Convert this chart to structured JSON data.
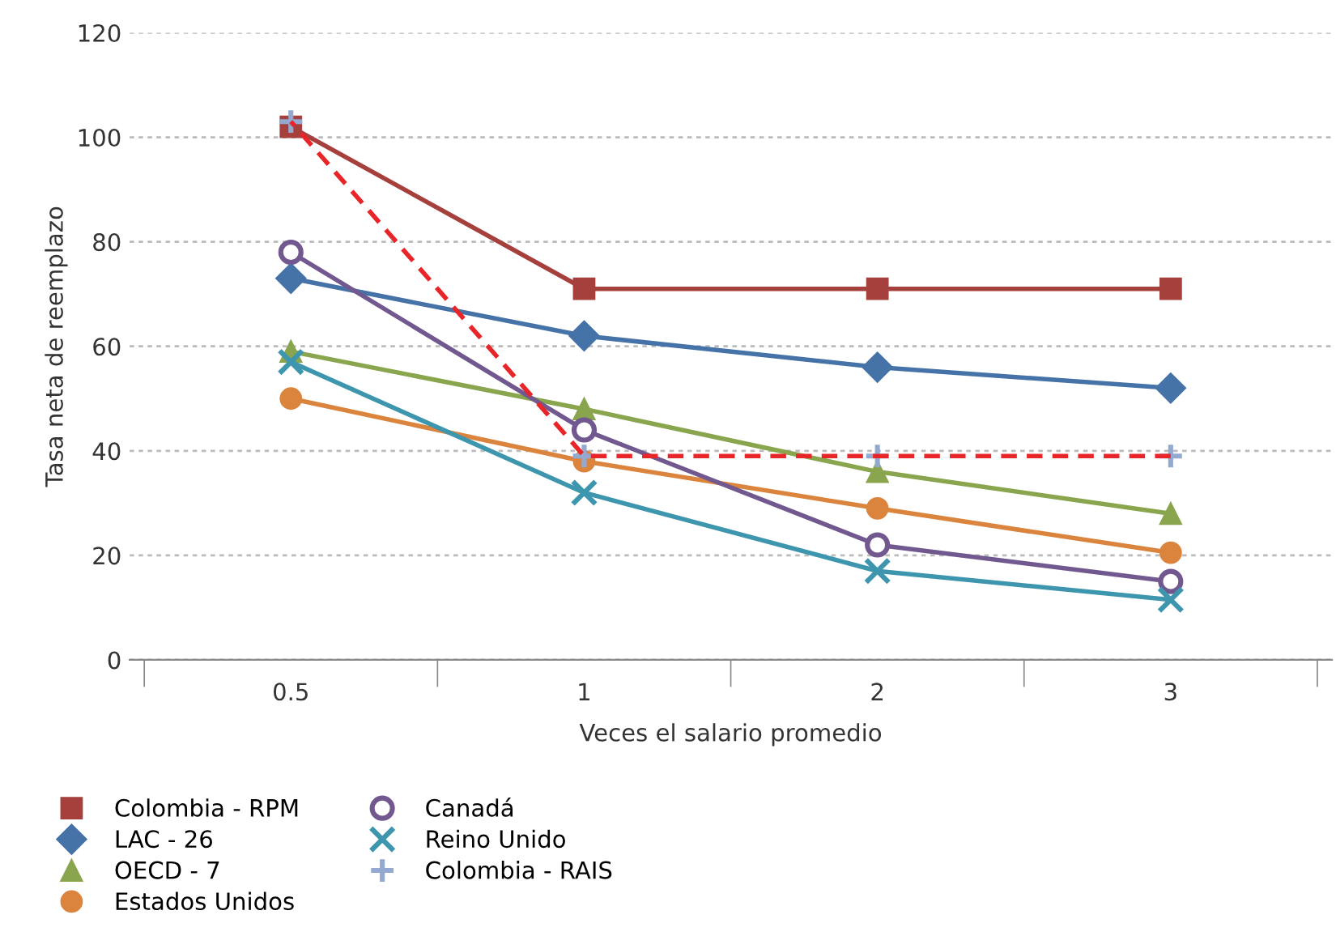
{
  "chart_data": {
    "type": "line",
    "xlabel": "Veces el salario promedio",
    "ylabel": "Tasa neta de reemplazo",
    "categories": [
      "0.5",
      "1",
      "2",
      "3"
    ],
    "ylim": [
      0,
      120
    ],
    "yticks": [
      0,
      20,
      40,
      60,
      80,
      100,
      120
    ],
    "grid": "y",
    "legend": "bottom",
    "series": [
      {
        "name": "Colombia - RPM",
        "color": "#a5403d",
        "marker": "square",
        "values": [
          102,
          71,
          71,
          71
        ]
      },
      {
        "name": "LAC - 26",
        "color": "#4572a7",
        "marker": "diamond",
        "values": [
          73,
          62,
          56,
          52
        ]
      },
      {
        "name": "OECD - 7",
        "color": "#89a54e",
        "marker": "triangle",
        "values": [
          59,
          48,
          36,
          28
        ]
      },
      {
        "name": "Estados Unidos",
        "color": "#db843d",
        "marker": "circle",
        "values": [
          50,
          38,
          29,
          20.5
        ]
      },
      {
        "name": "Canadá",
        "color": "#71588f",
        "marker": "circle_open",
        "values": [
          78,
          44,
          22,
          15
        ]
      },
      {
        "name": "Reino Unido",
        "color": "#3d96ae",
        "marker": "cross",
        "values": [
          57,
          32,
          17,
          11.5
        ]
      },
      {
        "name": "Colombia - RAIS",
        "color": "#e8262a",
        "colors": [
          "#93a9cf",
          "#93a9cf",
          "#93a9cf",
          "#93a9cf"
        ],
        "line_style": "dashed",
        "marker": "plus",
        "values": [
          103,
          39,
          39,
          39
        ]
      }
    ]
  }
}
